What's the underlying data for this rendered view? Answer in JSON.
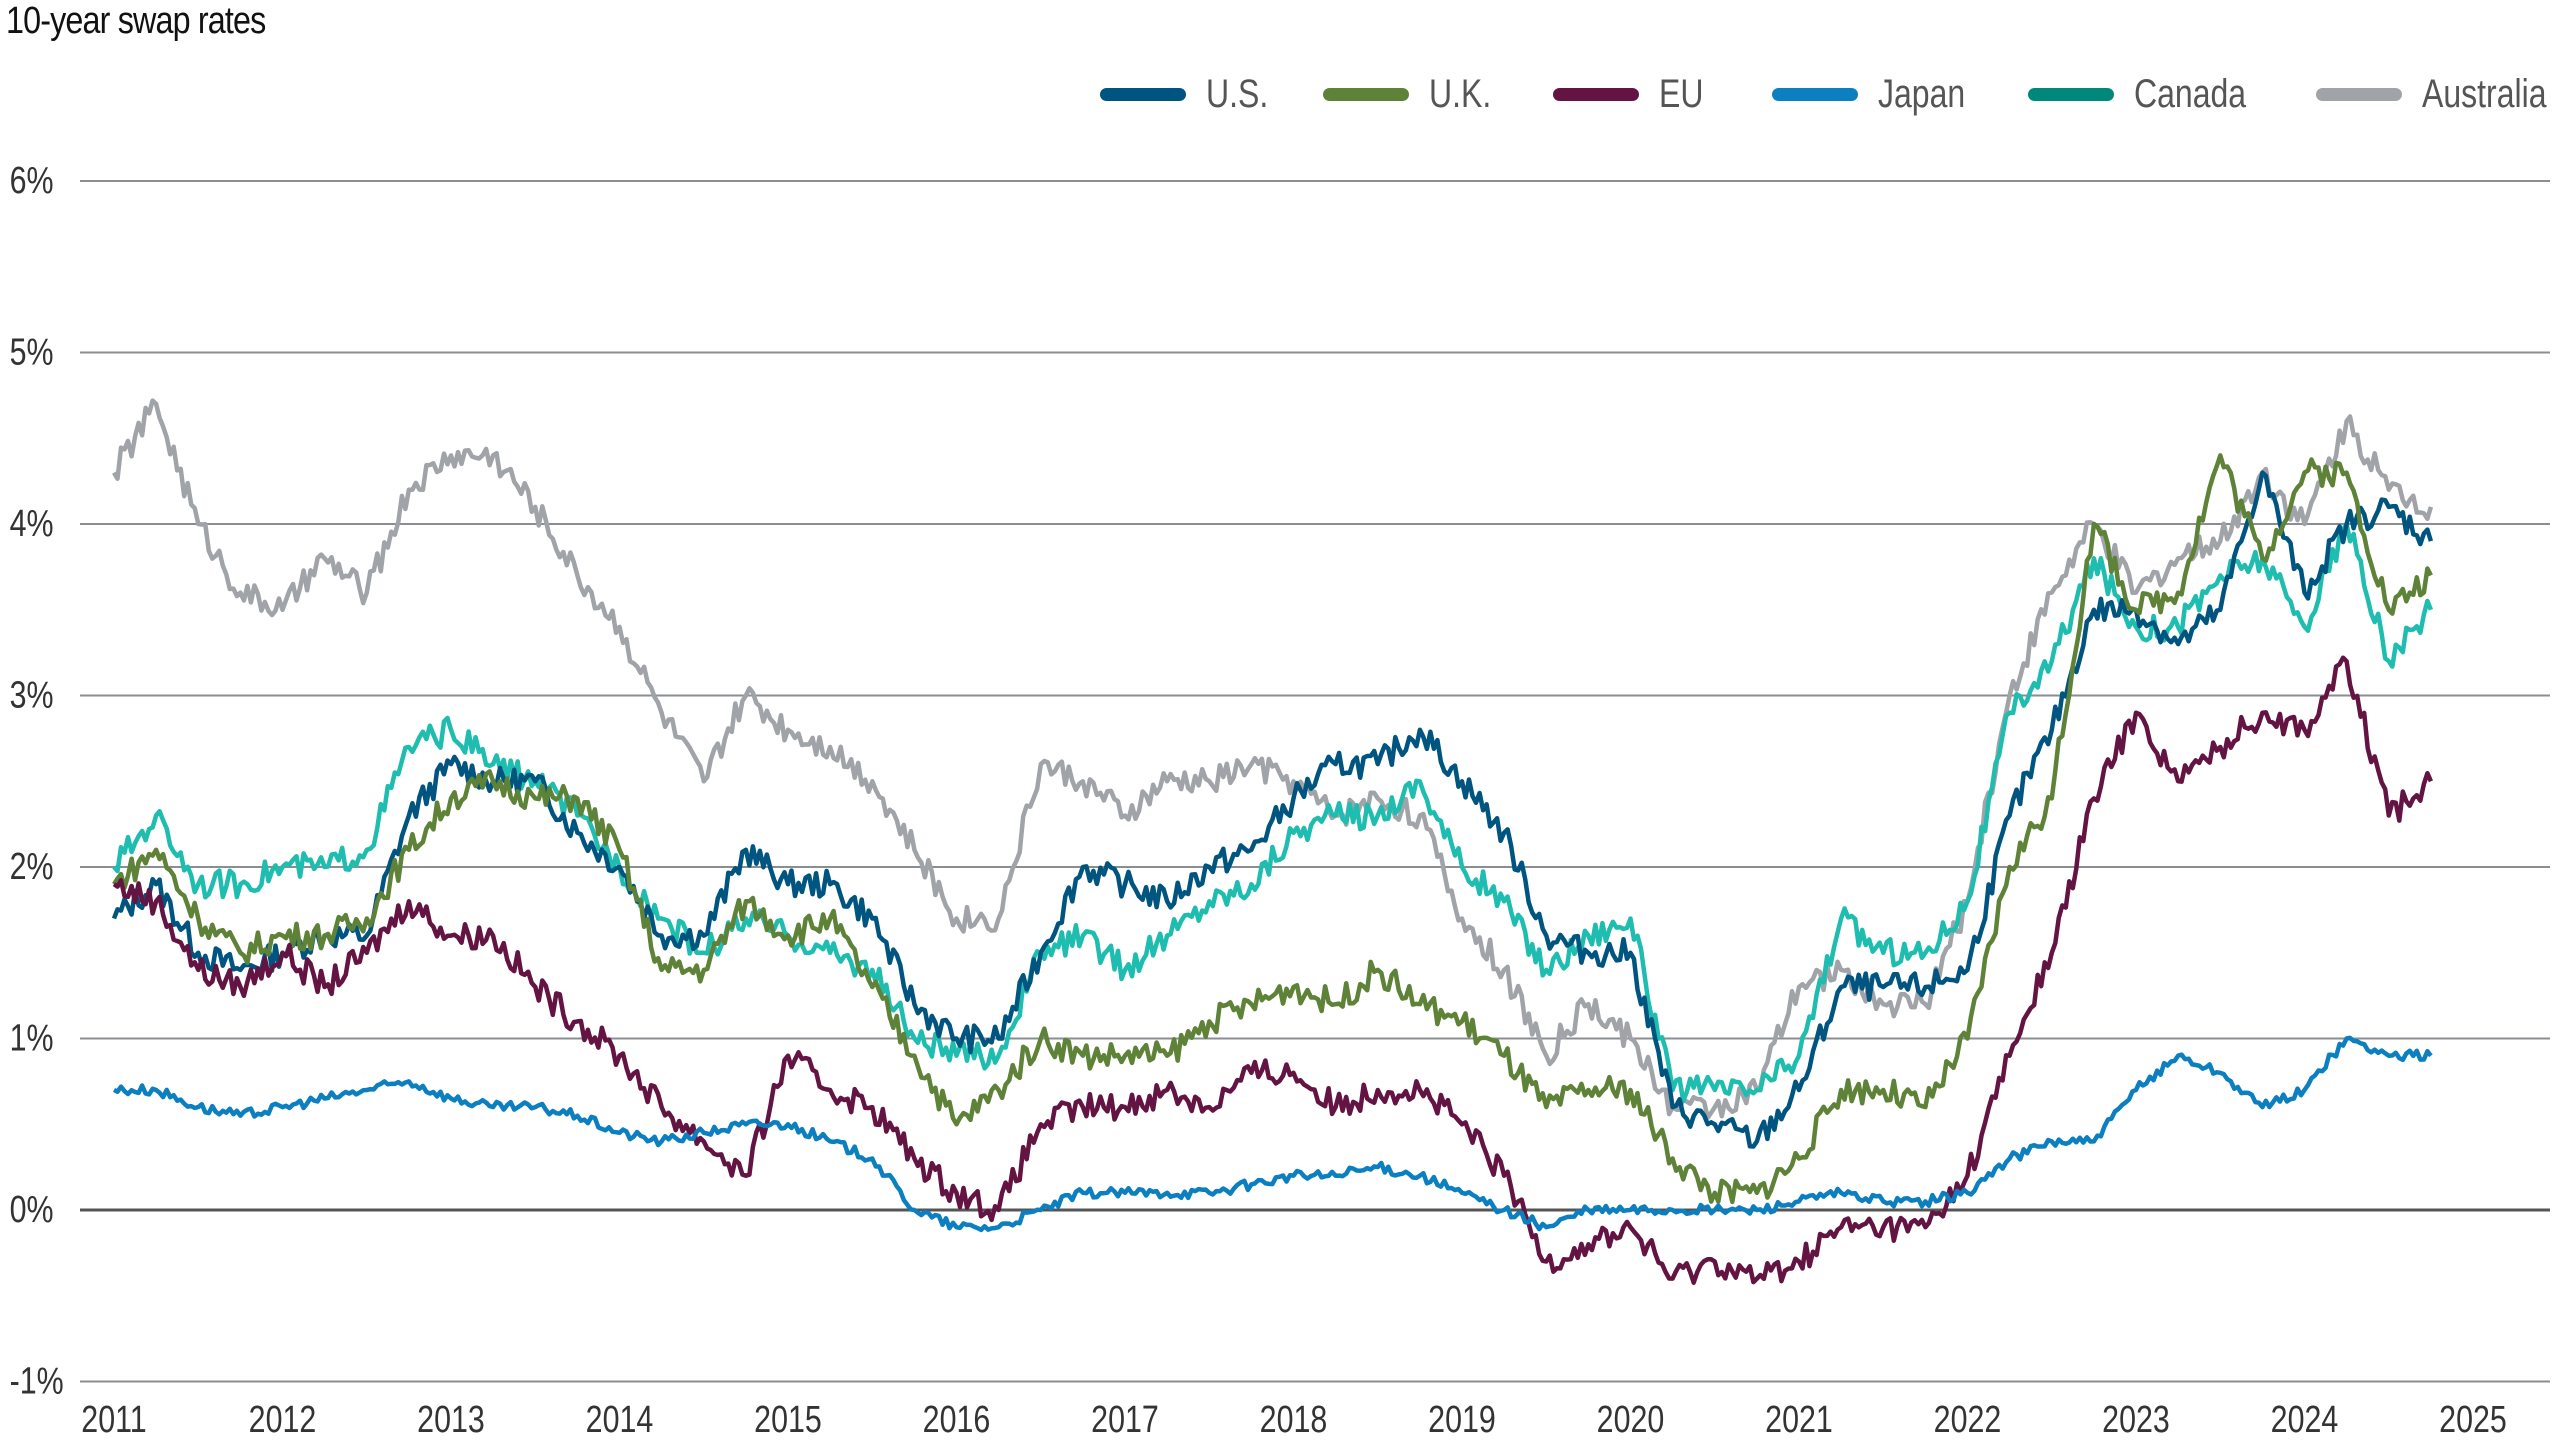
{
  "chart_data": {
    "type": "line",
    "title": "10-year swap rates",
    "xlabel": "",
    "ylabel": "",
    "ylim": [
      -1,
      6
    ],
    "yticks": [
      "6%",
      "5%",
      "4%",
      "3%",
      "2%",
      "1%",
      "0%",
      "-1%"
    ],
    "ytick_values": [
      6,
      5,
      4,
      3,
      2,
      1,
      0,
      -1
    ],
    "xticks": [
      "2011",
      "2012",
      "2013",
      "2014",
      "2015",
      "2016",
      "2017",
      "2018",
      "2019",
      "2020",
      "2021",
      "2022",
      "2023",
      "2024",
      "2025"
    ],
    "grid": "horizontal",
    "legend_position": "top-right",
    "x": [
      "2011-01",
      "2011-04",
      "2011-07",
      "2011-10",
      "2012-01",
      "2012-04",
      "2012-07",
      "2012-10",
      "2013-01",
      "2013-04",
      "2013-07",
      "2013-10",
      "2014-01",
      "2014-04",
      "2014-07",
      "2014-10",
      "2015-01",
      "2015-04",
      "2015-07",
      "2015-10",
      "2016-01",
      "2016-04",
      "2016-07",
      "2016-10",
      "2017-01",
      "2017-04",
      "2017-07",
      "2017-10",
      "2018-01",
      "2018-04",
      "2018-07",
      "2018-10",
      "2019-01",
      "2019-04",
      "2019-07",
      "2019-10",
      "2020-01",
      "2020-04",
      "2020-07",
      "2020-10",
      "2021-01",
      "2021-04",
      "2021-07",
      "2021-10",
      "2022-01",
      "2022-04",
      "2022-07",
      "2022-10",
      "2023-01",
      "2023-04",
      "2023-07",
      "2023-10",
      "2024-01",
      "2024-04",
      "2024-07",
      "2024-10"
    ],
    "series": [
      {
        "name": "U.S.",
        "color": "#005580",
        "values": [
          1.7,
          1.9,
          1.5,
          1.4,
          1.5,
          1.6,
          1.6,
          2.3,
          2.6,
          2.5,
          2.5,
          2.2,
          2.0,
          1.6,
          1.6,
          2.1,
          1.9,
          1.9,
          1.7,
          1.2,
          1.0,
          1.0,
          1.5,
          2.0,
          1.9,
          1.8,
          2.0,
          2.1,
          2.4,
          2.6,
          2.6,
          2.8,
          2.5,
          2.2,
          1.6,
          1.5,
          1.5,
          0.6,
          0.5,
          0.4,
          0.7,
          1.3,
          1.3,
          1.3,
          1.4,
          2.3,
          2.8,
          3.5,
          3.5,
          3.3,
          3.5,
          4.3,
          3.6,
          4.0,
          4.1,
          3.9
        ]
      },
      {
        "name": "U.K.",
        "color": "#5e8237",
        "values": [
          1.9,
          2.1,
          1.7,
          1.5,
          1.6,
          1.6,
          1.7,
          2.1,
          2.4,
          2.5,
          2.4,
          2.4,
          2.1,
          1.4,
          1.4,
          1.8,
          1.6,
          1.7,
          1.3,
          0.9,
          0.5,
          0.7,
          1.0,
          0.9,
          0.9,
          0.9,
          1.1,
          1.2,
          1.3,
          1.2,
          1.4,
          1.2,
          1.1,
          0.9,
          0.6,
          0.7,
          0.7,
          0.3,
          0.1,
          0.1,
          0.3,
          0.7,
          0.7,
          0.6,
          1.0,
          2.0,
          2.4,
          4.0,
          3.5,
          3.6,
          4.4,
          3.8,
          4.3,
          4.3,
          3.5,
          3.7
        ]
      },
      {
        "name": "EU",
        "color": "#631443",
        "values": [
          1.9,
          1.8,
          1.4,
          1.3,
          1.5,
          1.3,
          1.5,
          1.8,
          1.6,
          1.6,
          1.3,
          1.1,
          0.9,
          0.6,
          0.4,
          0.2,
          0.9,
          0.7,
          0.6,
          0.3,
          0.1,
          0.0,
          0.5,
          0.6,
          0.6,
          0.7,
          0.6,
          0.8,
          0.8,
          0.6,
          0.7,
          0.7,
          0.5,
          0.2,
          -0.3,
          -0.2,
          -0.1,
          -0.4,
          -0.3,
          -0.4,
          -0.3,
          -0.1,
          -0.1,
          -0.1,
          0.2,
          0.9,
          1.5,
          2.4,
          2.9,
          2.5,
          2.7,
          2.9,
          2.8,
          3.2,
          2.3,
          2.5
        ]
      },
      {
        "name": "Japan",
        "color": "#0b7fbf",
        "values": [
          0.7,
          0.7,
          0.6,
          0.55,
          0.6,
          0.65,
          0.7,
          0.75,
          0.65,
          0.6,
          0.6,
          0.55,
          0.45,
          0.4,
          0.45,
          0.5,
          0.5,
          0.4,
          0.3,
          0.0,
          -0.1,
          -0.1,
          0.0,
          0.1,
          0.1,
          0.1,
          0.1,
          0.15,
          0.2,
          0.2,
          0.25,
          0.2,
          0.1,
          0.0,
          -0.1,
          0.0,
          0.0,
          0.0,
          0.0,
          0.0,
          0.05,
          0.1,
          0.05,
          0.05,
          0.1,
          0.3,
          0.4,
          0.4,
          0.7,
          0.9,
          0.8,
          0.6,
          0.7,
          1.0,
          0.9,
          0.9
        ]
      },
      {
        "name": "Canada",
        "color": "#00897b",
        "line_color": "#1fbdb0",
        "values": [
          2.0,
          2.3,
          1.9,
          1.9,
          2.0,
          2.0,
          2.1,
          2.7,
          2.8,
          2.6,
          2.5,
          2.3,
          2.0,
          1.7,
          1.5,
          1.7,
          1.6,
          1.5,
          1.4,
          1.0,
          0.9,
          0.9,
          1.5,
          1.6,
          1.4,
          1.6,
          1.8,
          1.9,
          2.2,
          2.3,
          2.3,
          2.5,
          2.0,
          1.8,
          1.4,
          1.6,
          1.7,
          0.7,
          0.7,
          0.7,
          0.9,
          1.7,
          1.5,
          1.5,
          1.8,
          2.9,
          3.2,
          3.8,
          3.4,
          3.4,
          3.7,
          3.8,
          3.4,
          4.0,
          3.2,
          3.5
        ]
      },
      {
        "name": "Australia",
        "color": "#a0a3a8",
        "values": [
          4.3,
          4.7,
          4.0,
          3.6,
          3.5,
          3.8,
          3.6,
          4.2,
          4.4,
          4.4,
          4.1,
          3.7,
          3.4,
          2.9,
          2.5,
          3.0,
          2.8,
          2.7,
          2.5,
          2.1,
          1.7,
          1.7,
          2.6,
          2.5,
          2.3,
          2.5,
          2.5,
          2.6,
          2.5,
          2.3,
          2.4,
          2.3,
          1.7,
          1.4,
          0.9,
          1.2,
          1.0,
          0.6,
          0.6,
          0.7,
          1.3,
          1.4,
          1.2,
          1.2,
          1.8,
          3.0,
          3.6,
          4.0,
          3.6,
          3.8,
          3.9,
          4.3,
          4.0,
          4.6,
          4.2,
          4.1
        ]
      }
    ]
  }
}
